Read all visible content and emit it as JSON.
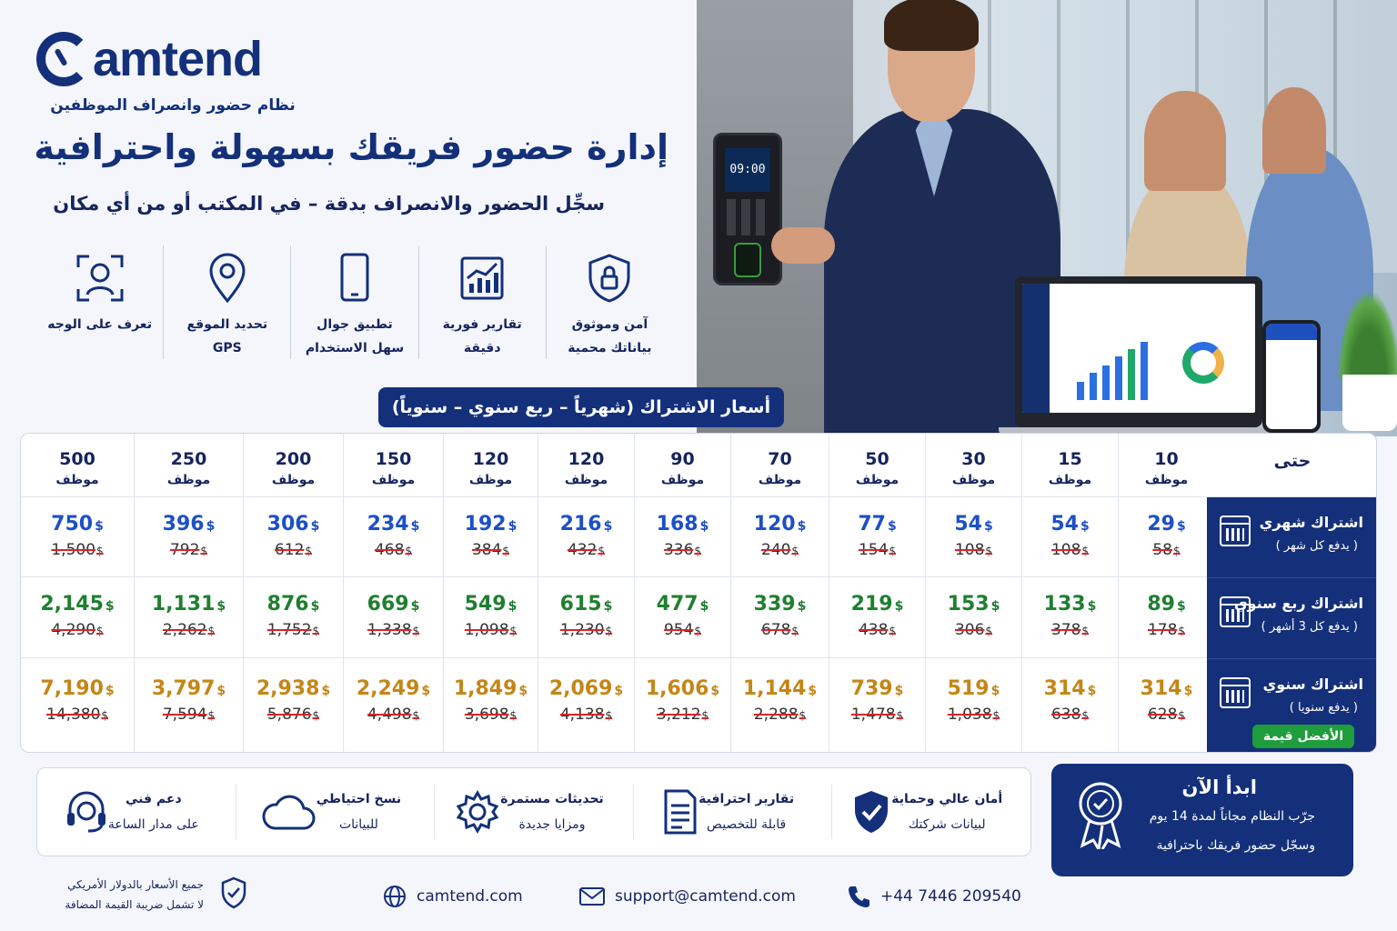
{
  "brand": {
    "name": "amtend",
    "tagline": "نظام حضور وانصراف الموظفين"
  },
  "hero": {
    "title": "إدارة حضور فريقك بسهولة واحترافية",
    "subtitle": "سجِّل الحضور والانصراف بدقة – في المكتب أو من أي مكان",
    "device_time": "09:00"
  },
  "features": [
    {
      "icon": "shield-lock-icon",
      "l1": "آمن وموثوق",
      "l2": "بياناتك محمية"
    },
    {
      "icon": "bar-chart-icon",
      "l1": "تقارير فورية",
      "l2": "دقيقة"
    },
    {
      "icon": "mobile-phone-icon",
      "l1": "تطبيق جوال",
      "l2": "سهل الاستخدام"
    },
    {
      "icon": "location-pin-icon",
      "l1": "تحديد الموقع",
      "l2": "GPS"
    },
    {
      "icon": "face-recognition-icon",
      "l1": "تعرف على الوجه",
      "l2": ""
    }
  ],
  "pricing": {
    "heading": "أسعار الاشتراك (شهرياً – ربع سنوي – سنوياً)",
    "upto_label": "حتى",
    "employee_label": "موظف",
    "currency": "$",
    "tiers": [
      "10",
      "15",
      "30",
      "50",
      "70",
      "90",
      "120",
      "120",
      "150",
      "200",
      "250",
      "500"
    ],
    "plans": [
      {
        "name": "اشتراك شهري",
        "sub": "( يدفع كل شهر )",
        "color": "#1d50c6",
        "prices": [
          "29",
          "54",
          "54",
          "77",
          "120",
          "168",
          "216",
          "192",
          "234",
          "306",
          "396",
          "750"
        ],
        "old": [
          "58",
          "108",
          "108",
          "154",
          "240",
          "336",
          "432",
          "384",
          "468",
          "612",
          "792",
          "1,500"
        ]
      },
      {
        "name": "اشتراك ربع سنوي",
        "sub": "( يدفع كل 3 أشهر )",
        "color": "#1f7f30",
        "prices": [
          "89",
          "133",
          "153",
          "219",
          "339",
          "477",
          "615",
          "549",
          "669",
          "876",
          "1,131",
          "2,145"
        ],
        "old": [
          "178",
          "378",
          "306",
          "438",
          "678",
          "954",
          "1,230",
          "1,098",
          "1,338",
          "1,752",
          "2,262",
          "4,290"
        ]
      },
      {
        "name": "اشتراك سنوي",
        "sub": "( يدفع سنويا )",
        "color": "#c58616",
        "badge": "الأفضل قيمة",
        "prices": [
          "314",
          "314",
          "519",
          "739",
          "1,144",
          "1,606",
          "2,069",
          "1,849",
          "2,249",
          "2,938",
          "3,797",
          "7,190"
        ],
        "old": [
          "628",
          "638",
          "1,038",
          "1,478",
          "2,288",
          "3,212",
          "4,138",
          "3,698",
          "4,498",
          "5,876",
          "7,594",
          "14,380"
        ]
      }
    ]
  },
  "benefits": [
    {
      "icon": "shield-check-icon",
      "a": "أمان عالي وحماية",
      "b": "لبيانات شركتك"
    },
    {
      "icon": "document-icon",
      "a": "تقارير احترافية",
      "b": "قابلة للتخصيص"
    },
    {
      "icon": "gear-icon",
      "a": "تحديثات مستمرة",
      "b": "ومزايا جديدة"
    },
    {
      "icon": "cloud-icon",
      "a": "نسخ احتياطي",
      "b": "للبيانات"
    },
    {
      "icon": "headset-icon",
      "a": "دعم فني",
      "b": "على مدار الساعة"
    }
  ],
  "cta": {
    "title": "ابدأ الآن",
    "line1": "جرّب النظام مجاناً لمدة 14 يوم",
    "line2": "وسجّل حضور فريقك باحترافية"
  },
  "footer": {
    "phone": "+44 7446 209540",
    "email": "support@camtend.com",
    "website": "camtend.com",
    "vat1": "جميع الأسعار بالدولار الأمريكي",
    "vat2": "لا تشمل ضريبة القيمة المضافة"
  }
}
